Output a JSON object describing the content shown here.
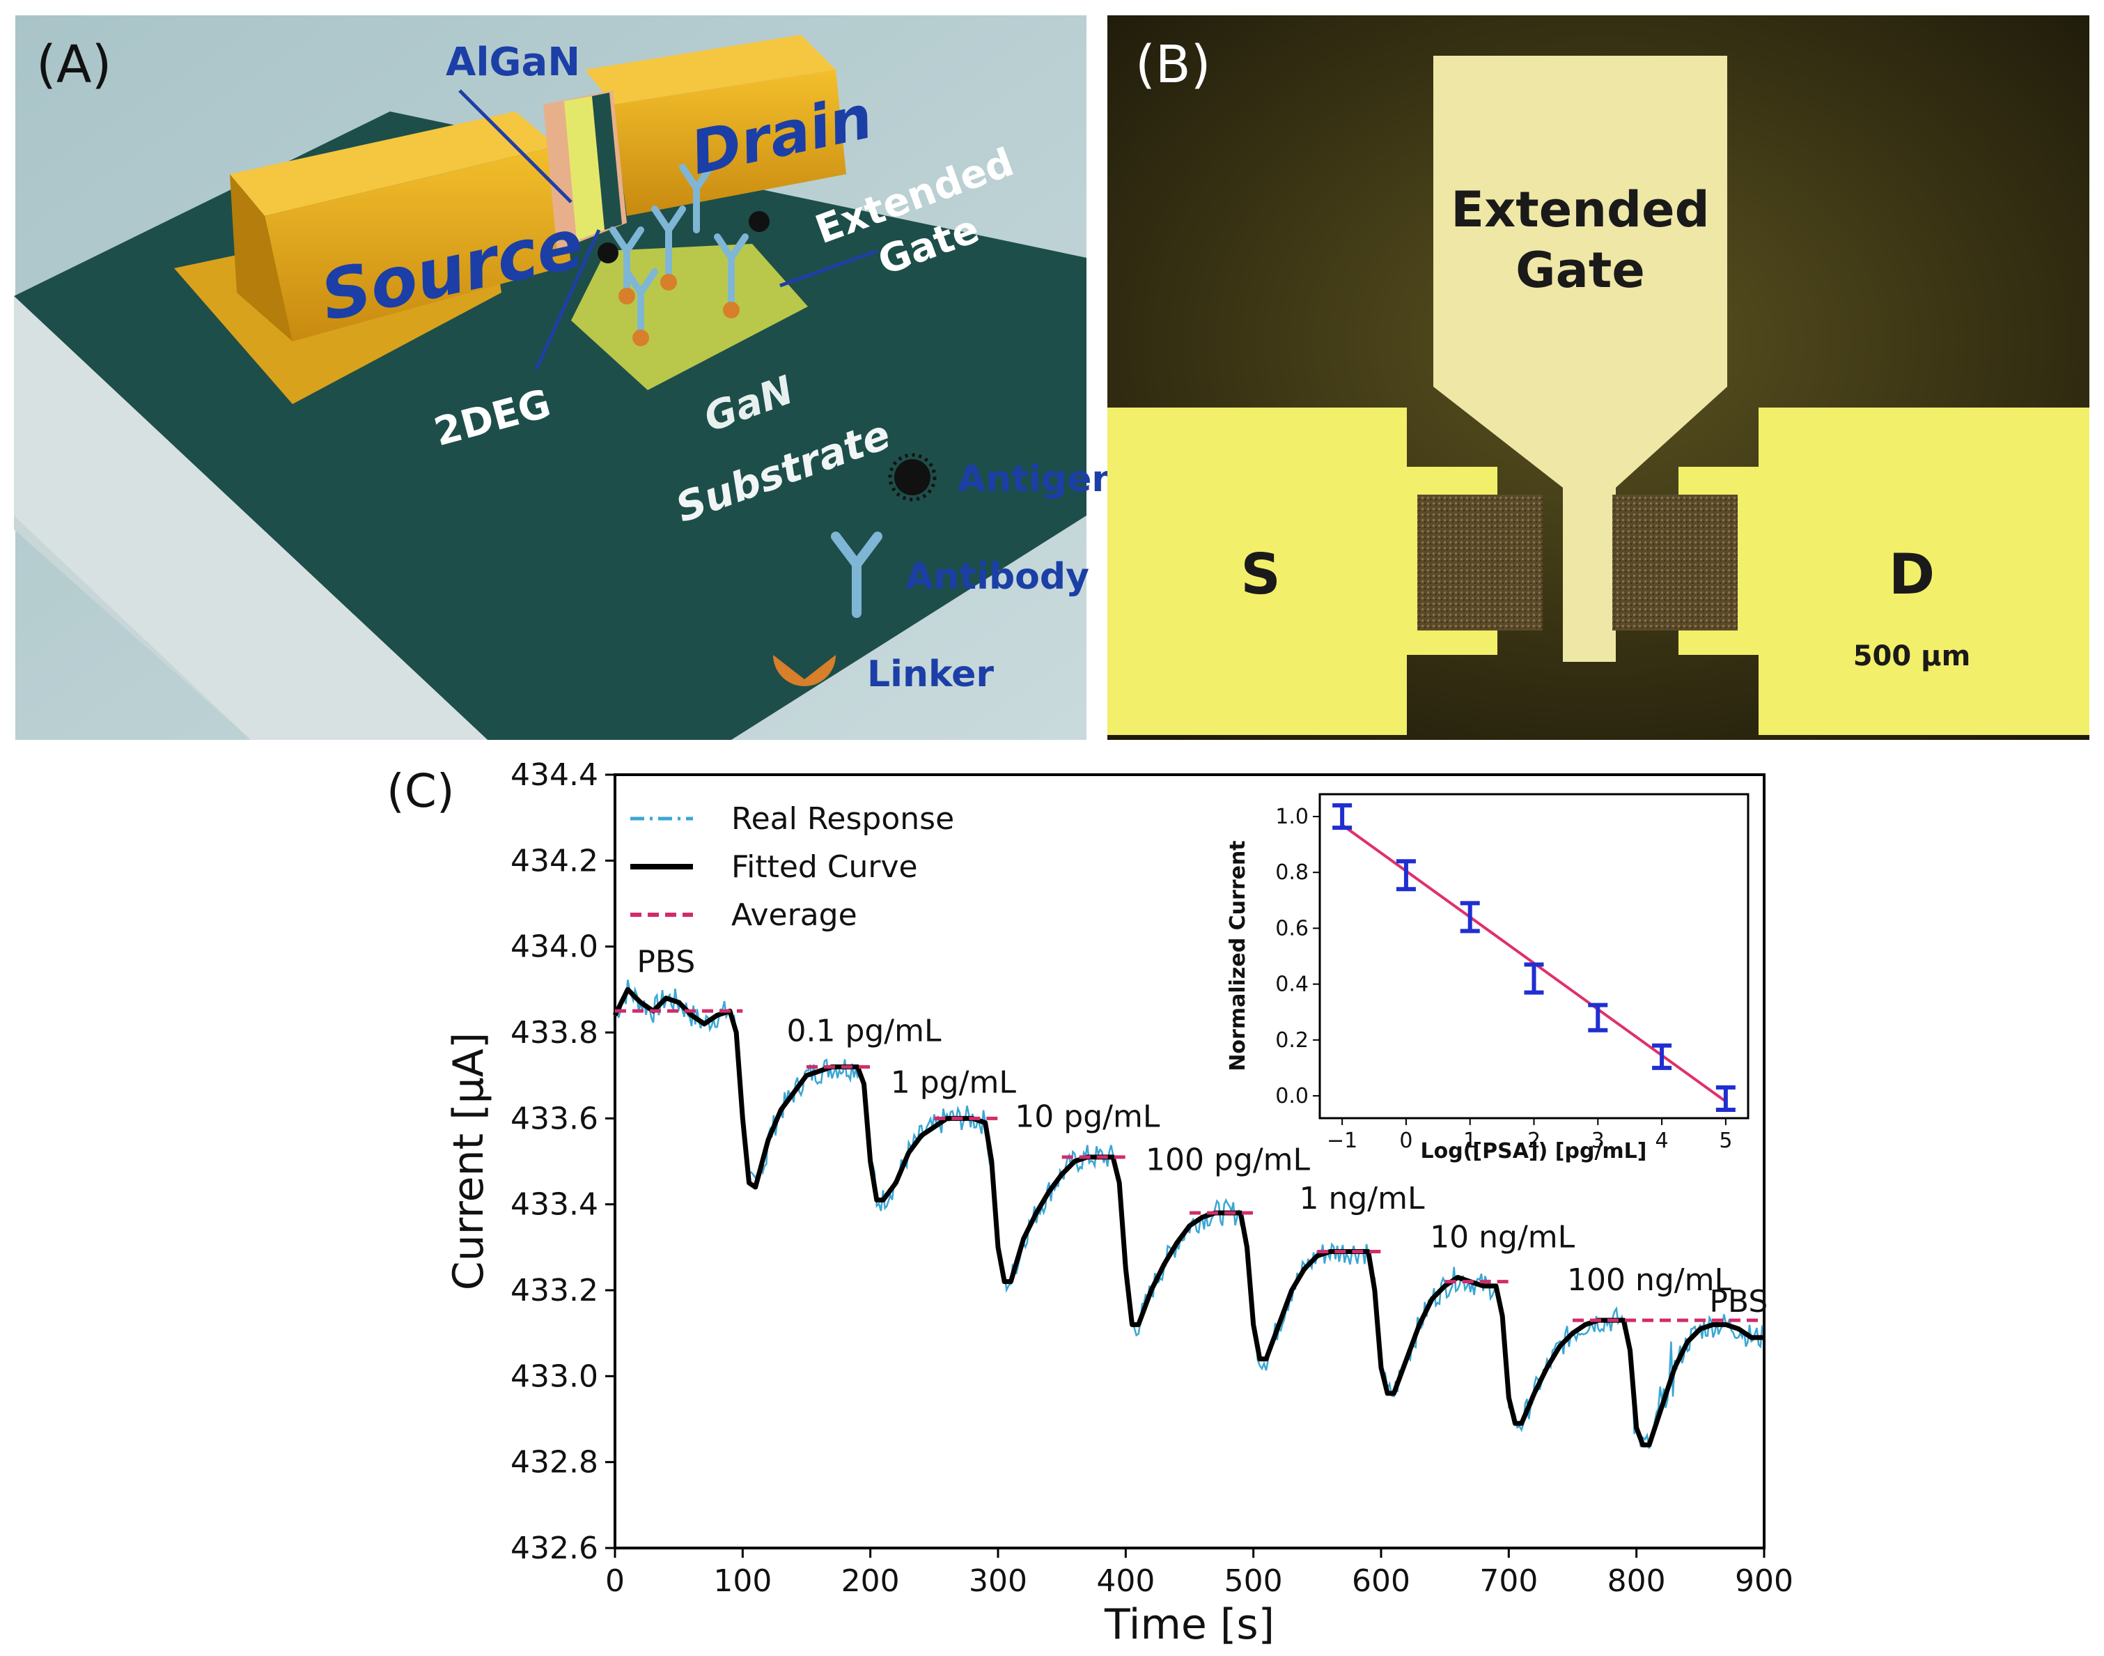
{
  "panelA": {
    "label": "(A)",
    "source": "Source",
    "drain": "Drain",
    "algan": "AlGaN",
    "extended_gate_line1": "Extended",
    "extended_gate_line2": "Gate",
    "twodeg": "2DEG",
    "gan": "GaN",
    "substrate": "Substrate",
    "legend": {
      "antigen": "Antigen",
      "antibody": "Antibody",
      "linker": "Linker"
    },
    "colors": {
      "background": "#b7cfd2",
      "slab_top": "#1d4e4a",
      "slab_side": "#c6d3d6",
      "gold": "#e0a61a",
      "label_blue": "#1b3fa6"
    }
  },
  "panelB": {
    "label": "(B)",
    "extended_gate_line1": "Extended",
    "extended_gate_line2": "Gate",
    "s_label": "S",
    "d_label": "D",
    "scale_bar": "500 µm",
    "colors": {
      "background": "#2a2410",
      "pad": "#f2ef6a",
      "gate": "#eee6a6"
    }
  },
  "panelC": {
    "label": "(C)",
    "chart_data": {
      "type": "line",
      "xlabel": "Time [s]",
      "ylabel": "Current [µA]",
      "xlim": [
        0,
        900
      ],
      "ylim": [
        432.6,
        434.4
      ],
      "x_ticks": [
        "0",
        "100",
        "200",
        "300",
        "400",
        "500",
        "600",
        "700",
        "800",
        "900"
      ],
      "y_ticks": [
        "432.6",
        "432.8",
        "433.0",
        "433.2",
        "433.4",
        "433.6",
        "433.8",
        "434.0",
        "434.2",
        "434.4"
      ],
      "legend": [
        "Real Response",
        "Fitted Curve",
        "Average"
      ],
      "series": [
        {
          "name": "Fitted Curve",
          "x": [
            0,
            10,
            20,
            30,
            40,
            50,
            60,
            70,
            80,
            90,
            95,
            100,
            105,
            110,
            120,
            130,
            140,
            150,
            160,
            170,
            180,
            190,
            195,
            200,
            205,
            210,
            220,
            230,
            240,
            250,
            260,
            270,
            280,
            290,
            295,
            300,
            305,
            310,
            320,
            330,
            340,
            350,
            360,
            370,
            380,
            390,
            395,
            400,
            405,
            410,
            420,
            430,
            440,
            450,
            460,
            470,
            480,
            490,
            495,
            500,
            505,
            510,
            520,
            530,
            540,
            550,
            560,
            570,
            580,
            590,
            595,
            600,
            605,
            610,
            620,
            630,
            640,
            650,
            660,
            670,
            680,
            690,
            695,
            700,
            705,
            710,
            720,
            730,
            740,
            750,
            760,
            770,
            780,
            790,
            795,
            800,
            805,
            810,
            820,
            830,
            840,
            850,
            860,
            870,
            880,
            890,
            900
          ],
          "y": [
            433.84,
            433.9,
            433.87,
            433.85,
            433.88,
            433.87,
            433.84,
            433.82,
            433.84,
            433.85,
            433.8,
            433.6,
            433.45,
            433.44,
            433.55,
            433.62,
            433.66,
            433.7,
            433.71,
            433.72,
            433.72,
            433.72,
            433.68,
            433.5,
            433.41,
            433.41,
            433.45,
            433.52,
            433.56,
            433.58,
            433.6,
            433.6,
            433.6,
            433.59,
            433.5,
            433.3,
            433.22,
            433.22,
            433.32,
            433.38,
            433.43,
            433.47,
            433.5,
            433.51,
            433.51,
            433.51,
            433.45,
            433.25,
            433.12,
            433.12,
            433.2,
            433.26,
            433.31,
            433.35,
            433.37,
            433.38,
            433.38,
            433.38,
            433.3,
            433.12,
            433.04,
            433.04,
            433.12,
            433.2,
            433.25,
            433.28,
            433.29,
            433.29,
            433.29,
            433.29,
            433.2,
            433.02,
            432.96,
            432.96,
            433.04,
            433.12,
            433.18,
            433.21,
            433.23,
            433.22,
            433.21,
            433.21,
            433.14,
            432.95,
            432.89,
            432.89,
            432.96,
            433.02,
            433.07,
            433.1,
            433.12,
            433.13,
            433.13,
            433.13,
            433.06,
            432.88,
            432.84,
            432.84,
            432.93,
            433.02,
            433.08,
            433.11,
            433.12,
            433.12,
            433.11,
            433.09,
            433.09
          ]
        },
        {
          "name": "Average",
          "segments": [
            {
              "x": [
                0,
                100
              ],
              "y": 433.85
            },
            {
              "x": [
                150,
                200
              ],
              "y": 433.72
            },
            {
              "x": [
                250,
                300
              ],
              "y": 433.6
            },
            {
              "x": [
                350,
                400
              ],
              "y": 433.51
            },
            {
              "x": [
                450,
                500
              ],
              "y": 433.38
            },
            {
              "x": [
                550,
                600
              ],
              "y": 433.29
            },
            {
              "x": [
                650,
                700
              ],
              "y": 433.22
            },
            {
              "x": [
                750,
                900
              ],
              "y": 433.13
            }
          ]
        }
      ],
      "annotations": [
        {
          "text": "PBS",
          "x": 40,
          "y": 433.94
        },
        {
          "text": "0.1 pg/mL",
          "x": 195,
          "y": 433.78
        },
        {
          "text": "1 pg/mL",
          "x": 265,
          "y": 433.66
        },
        {
          "text": "10 pg/mL",
          "x": 370,
          "y": 433.58
        },
        {
          "text": "100 pg/mL",
          "x": 480,
          "y": 433.48
        },
        {
          "text": "1 ng/mL",
          "x": 585,
          "y": 433.39
        },
        {
          "text": "10 ng/mL",
          "x": 695,
          "y": 433.3
        },
        {
          "text": "100 ng/mL",
          "x": 810,
          "y": 433.2
        },
        {
          "text": "PBS",
          "x": 880,
          "y": 433.15
        }
      ],
      "inset": {
        "type": "scatter",
        "xlabel": "Log([PSA]) [pg/mL]",
        "ylabel": "Normalized Current",
        "xlim": [
          -1.35,
          5.35
        ],
        "ylim": [
          -0.08,
          1.08
        ],
        "x_ticks": [
          "−1",
          "0",
          "1",
          "2",
          "3",
          "4",
          "5"
        ],
        "y_ticks": [
          "0.0",
          "0.2",
          "0.4",
          "0.6",
          "0.8",
          "1.0"
        ],
        "x": [
          -1,
          0,
          1,
          2,
          3,
          4,
          5
        ],
        "y": [
          1.0,
          0.79,
          0.64,
          0.42,
          0.28,
          0.14,
          -0.01
        ],
        "err": [
          0.04,
          0.05,
          0.05,
          0.05,
          0.045,
          0.04,
          0.04
        ],
        "fit": {
          "x": [
            -1,
            5
          ],
          "y": [
            0.97,
            -0.02
          ]
        }
      },
      "colors": {
        "real": "#3aa7d4",
        "fitted": "#000000",
        "average": "#d12c6a",
        "inset_points": "#1f2fd0",
        "inset_fit": "#e0306a"
      }
    }
  }
}
